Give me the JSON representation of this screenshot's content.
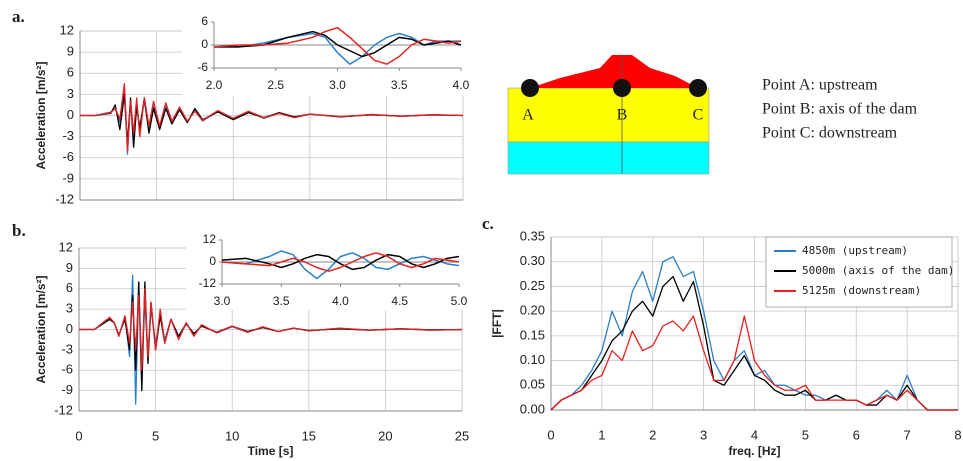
{
  "chart_data": [
    {
      "type": "line",
      "annotation": "a.",
      "ylabel": "Acceleration [m/s²]",
      "x": [
        0,
        1,
        2,
        2.3,
        2.6,
        2.9,
        3.1,
        3.3,
        3.5,
        3.7,
        3.9,
        4.2,
        4.5,
        4.8,
        5.2,
        5.6,
        6,
        6.5,
        7,
        7.5,
        8,
        9,
        10,
        11,
        12,
        13,
        14,
        15,
        17,
        19,
        21,
        23,
        25
      ],
      "xlim": [
        0,
        25
      ],
      "xticks": [
        0,
        5,
        10,
        15,
        20,
        25
      ],
      "xtick_labels": false,
      "ylim": [
        -12,
        12
      ],
      "yticks": [
        -12,
        -9,
        -6,
        -3,
        0,
        3,
        6,
        9,
        12
      ],
      "grid": true,
      "series": [
        {
          "color": "#2a7fc9",
          "values": [
            0,
            0,
            0.5,
            1,
            -1,
            3.5,
            -5.5,
            2,
            -3,
            1,
            -1.5,
            2,
            -2,
            1.5,
            -1.5,
            1.5,
            -1,
            1,
            -1,
            0.8,
            -0.8,
            0.6,
            -0.5,
            0.5,
            -0.4,
            0.3,
            -0.3,
            0.2,
            -0.2,
            0.15,
            -0.1,
            0.1,
            0
          ]
        },
        {
          "color": "#000000",
          "values": [
            0,
            0,
            0.3,
            1.5,
            -2,
            3,
            -4,
            2.5,
            -4.5,
            1.5,
            -2,
            2.5,
            -2.5,
            1,
            -2,
            1,
            -1.2,
            0.8,
            -1,
            1,
            -0.6,
            0.5,
            -0.6,
            0.4,
            -0.3,
            0.4,
            -0.2,
            0.2,
            -0.2,
            0.1,
            -0.1,
            0.1,
            0
          ]
        },
        {
          "color": "#e8201f",
          "values": [
            0,
            0,
            0.4,
            1,
            -0.5,
            4.5,
            -5,
            2,
            -2.5,
            2.5,
            -3,
            2.5,
            -1.5,
            2,
            -1.5,
            1.8,
            -0.8,
            1.2,
            -0.8,
            0.6,
            -0.7,
            0.7,
            -0.4,
            0.6,
            -0.3,
            0.3,
            -0.3,
            0.2,
            -0.15,
            0.1,
            -0.1,
            0.1,
            0
          ]
        }
      ]
    },
    {
      "type": "line",
      "x": [
        2.0,
        2.2,
        2.4,
        2.6,
        2.8,
        2.9,
        3.0,
        3.1,
        3.2,
        3.3,
        3.4,
        3.5,
        3.6,
        3.7,
        3.8,
        3.9,
        4.0
      ],
      "xlim": [
        2,
        4
      ],
      "xticks": [
        {
          "value": 2,
          "label": "2.0"
        },
        {
          "value": 2.5,
          "label": "2.5"
        },
        {
          "value": 3,
          "label": "3.0"
        },
        {
          "value": 3.5,
          "label": "3.5"
        },
        {
          "value": 4,
          "label": "4.0"
        }
      ],
      "ylim": [
        -6,
        6
      ],
      "yticks": [
        -6,
        0,
        6
      ],
      "grid": false,
      "series": [
        {
          "color": "#2a7fc9",
          "values": [
            -0.5,
            -0.5,
            0.5,
            2,
            3,
            2,
            -2,
            -5,
            -3,
            0,
            2,
            3,
            2,
            0,
            1,
            1,
            1
          ]
        },
        {
          "color": "#000000",
          "values": [
            -0.5,
            -0.5,
            0,
            2,
            3.5,
            2.5,
            0,
            -1.5,
            -3,
            -2,
            0,
            2,
            1.5,
            0,
            0.5,
            1,
            0
          ]
        },
        {
          "color": "#e8201f",
          "values": [
            -0.5,
            0,
            0,
            0.5,
            2,
            3.5,
            4.5,
            2,
            -1,
            -4,
            -5,
            -3,
            0,
            1.5,
            1,
            0.5,
            1
          ]
        }
      ]
    },
    {
      "type": "line",
      "annotation": "b.",
      "ylabel": "Acceleration [m/s²]",
      "xlabel": "Time [s]",
      "x": [
        0,
        1,
        2,
        2.3,
        2.6,
        3,
        3.3,
        3.5,
        3.7,
        3.9,
        4.1,
        4.3,
        4.5,
        4.7,
        5,
        5.3,
        5.6,
        6,
        6.5,
        7,
        7.5,
        8,
        9,
        10,
        11,
        12,
        13,
        14,
        15,
        17,
        19,
        21,
        23,
        25
      ],
      "xlim": [
        0,
        25
      ],
      "xticks": [
        0,
        5,
        10,
        15,
        20,
        25
      ],
      "ylim": [
        -12,
        12
      ],
      "yticks": [
        -12,
        -9,
        -6,
        -3,
        0,
        3,
        6,
        9,
        12
      ],
      "grid": true,
      "series": [
        {
          "color": "#2a7fc9",
          "values": [
            0,
            0,
            1.5,
            1,
            -1,
            2,
            -4,
            8,
            -11,
            6,
            -5,
            4,
            -4,
            3,
            -2,
            2,
            -1.5,
            1.5,
            -1,
            1,
            -0.8,
            0.6,
            -0.5,
            0.4,
            -0.4,
            0.3,
            -0.3,
            0.2,
            -0.2,
            0.15,
            -0.1,
            0.1,
            -0.1,
            0
          ]
        },
        {
          "color": "#000000",
          "values": [
            0,
            0,
            1.5,
            1,
            -0.8,
            1.5,
            -3,
            5,
            -6,
            7,
            -9,
            7,
            -5,
            4,
            -3,
            2,
            -2,
            1.5,
            -1,
            0.8,
            -0.6,
            0.5,
            -0.4,
            0.5,
            -0.3,
            0.3,
            -0.3,
            0.2,
            -0.15,
            0.1,
            -0.1,
            0.1,
            -0.05,
            0
          ]
        },
        {
          "color": "#e8201f",
          "values": [
            0,
            0,
            1.8,
            1,
            -1,
            2,
            -2,
            4,
            -3,
            5,
            -6,
            6,
            -4,
            4,
            -3,
            3,
            -2,
            1.5,
            -1.5,
            1,
            -1,
            0.7,
            -0.5,
            0.5,
            -0.4,
            0.4,
            -0.3,
            0.2,
            -0.2,
            0.2,
            -0.1,
            0.1,
            -0.1,
            0
          ]
        }
      ]
    },
    {
      "type": "line",
      "x": [
        3.0,
        3.2,
        3.4,
        3.5,
        3.6,
        3.7,
        3.8,
        3.9,
        4.0,
        4.1,
        4.2,
        4.3,
        4.4,
        4.5,
        4.6,
        4.7,
        4.8,
        4.9,
        5.0
      ],
      "xlim": [
        3,
        5
      ],
      "xticks": [
        {
          "value": 3,
          "label": "3.0"
        },
        {
          "value": 3.5,
          "label": "3.5"
        },
        {
          "value": 4,
          "label": "4.0"
        },
        {
          "value": 4.5,
          "label": "4.5"
        },
        {
          "value": 5,
          "label": "5.0"
        }
      ],
      "ylim": [
        -12,
        12
      ],
      "yticks": [
        -12,
        0,
        12
      ],
      "grid": false,
      "series": [
        {
          "color": "#2a7fc9",
          "values": [
            0,
            -1,
            3,
            6,
            4,
            -4,
            -9,
            -4,
            3,
            5,
            2,
            -3,
            -4,
            -1,
            2,
            3,
            1,
            -1,
            -2
          ]
        },
        {
          "color": "#000000",
          "values": [
            1,
            2,
            -1,
            -3,
            -1,
            2,
            4,
            3,
            -1,
            -4,
            -3,
            1,
            4,
            3,
            -1,
            -3,
            -1,
            2,
            3
          ]
        },
        {
          "color": "#e8201f",
          "values": [
            0,
            -1,
            -2,
            0,
            2,
            0,
            -3,
            -5,
            -3,
            0,
            3,
            5,
            3,
            -1,
            -3,
            -1,
            2,
            1,
            0
          ]
        }
      ]
    },
    {
      "type": "line",
      "annotation": "c.",
      "ylabel": "|FFT|",
      "xlabel": "freq. [Hz]",
      "x": [
        0,
        0.2,
        0.4,
        0.6,
        0.8,
        1.0,
        1.2,
        1.4,
        1.6,
        1.8,
        2.0,
        2.2,
        2.4,
        2.6,
        2.8,
        3.0,
        3.2,
        3.4,
        3.6,
        3.8,
        4.0,
        4.2,
        4.4,
        4.6,
        4.8,
        5.0,
        5.2,
        5.4,
        5.6,
        5.8,
        6.0,
        6.2,
        6.4,
        6.6,
        6.8,
        7.0,
        7.2,
        7.4,
        7.6,
        7.8,
        8.0
      ],
      "xlim": [
        0,
        8
      ],
      "xticks": [
        0,
        1,
        2,
        3,
        4,
        5,
        6,
        7,
        8
      ],
      "ylim": [
        0,
        0.35
      ],
      "yticks": [
        {
          "value": 0,
          "label": "0.00"
        },
        {
          "value": 0.05,
          "label": "0.05"
        },
        {
          "value": 0.1,
          "label": "0.10"
        },
        {
          "value": 0.15,
          "label": "0.15"
        },
        {
          "value": 0.2,
          "label": "0.20"
        },
        {
          "value": 0.25,
          "label": "0.25"
        },
        {
          "value": 0.3,
          "label": "0.30"
        },
        {
          "value": 0.35,
          "label": "0.35"
        }
      ],
      "grid": true,
      "legend": "upper right",
      "series": [
        {
          "name": "4850m (upstream)",
          "color": "#2a7fc9",
          "values": [
            0,
            0.02,
            0.03,
            0.05,
            0.08,
            0.12,
            0.2,
            0.15,
            0.24,
            0.28,
            0.22,
            0.3,
            0.31,
            0.27,
            0.28,
            0.2,
            0.1,
            0.06,
            0.1,
            0.12,
            0.07,
            0.08,
            0.05,
            0.05,
            0.04,
            0.03,
            0.03,
            0.02,
            0.03,
            0.02,
            0.02,
            0.01,
            0.02,
            0.04,
            0.02,
            0.07,
            0.02,
            0,
            0,
            0,
            0
          ]
        },
        {
          "name": "5000m (axis of the dam)",
          "color": "#000000",
          "values": [
            0,
            0.02,
            0.03,
            0.04,
            0.07,
            0.1,
            0.14,
            0.16,
            0.2,
            0.22,
            0.19,
            0.25,
            0.27,
            0.22,
            0.26,
            0.17,
            0.06,
            0.05,
            0.08,
            0.11,
            0.07,
            0.06,
            0.04,
            0.03,
            0.03,
            0.04,
            0.02,
            0.02,
            0.03,
            0.02,
            0.02,
            0.01,
            0.01,
            0.03,
            0.02,
            0.05,
            0.02,
            0,
            0,
            0,
            0
          ]
        },
        {
          "name": "5125m (downstream)",
          "color": "#e8201f",
          "values": [
            0,
            0.02,
            0.03,
            0.04,
            0.06,
            0.07,
            0.12,
            0.1,
            0.16,
            0.12,
            0.13,
            0.17,
            0.18,
            0.16,
            0.19,
            0.12,
            0.06,
            0.06,
            0.1,
            0.19,
            0.1,
            0.07,
            0.05,
            0.04,
            0.04,
            0.05,
            0.02,
            0.02,
            0.02,
            0.02,
            0.02,
            0.01,
            0.02,
            0.03,
            0.02,
            0.04,
            0.02,
            0,
            0,
            0,
            0
          ]
        }
      ]
    }
  ],
  "diagram": {
    "point_labels": [
      "A",
      "B",
      "C"
    ],
    "descriptions": [
      "Point A: upstream",
      "Point B: axis of the dam",
      "Point C: downstream"
    ]
  }
}
